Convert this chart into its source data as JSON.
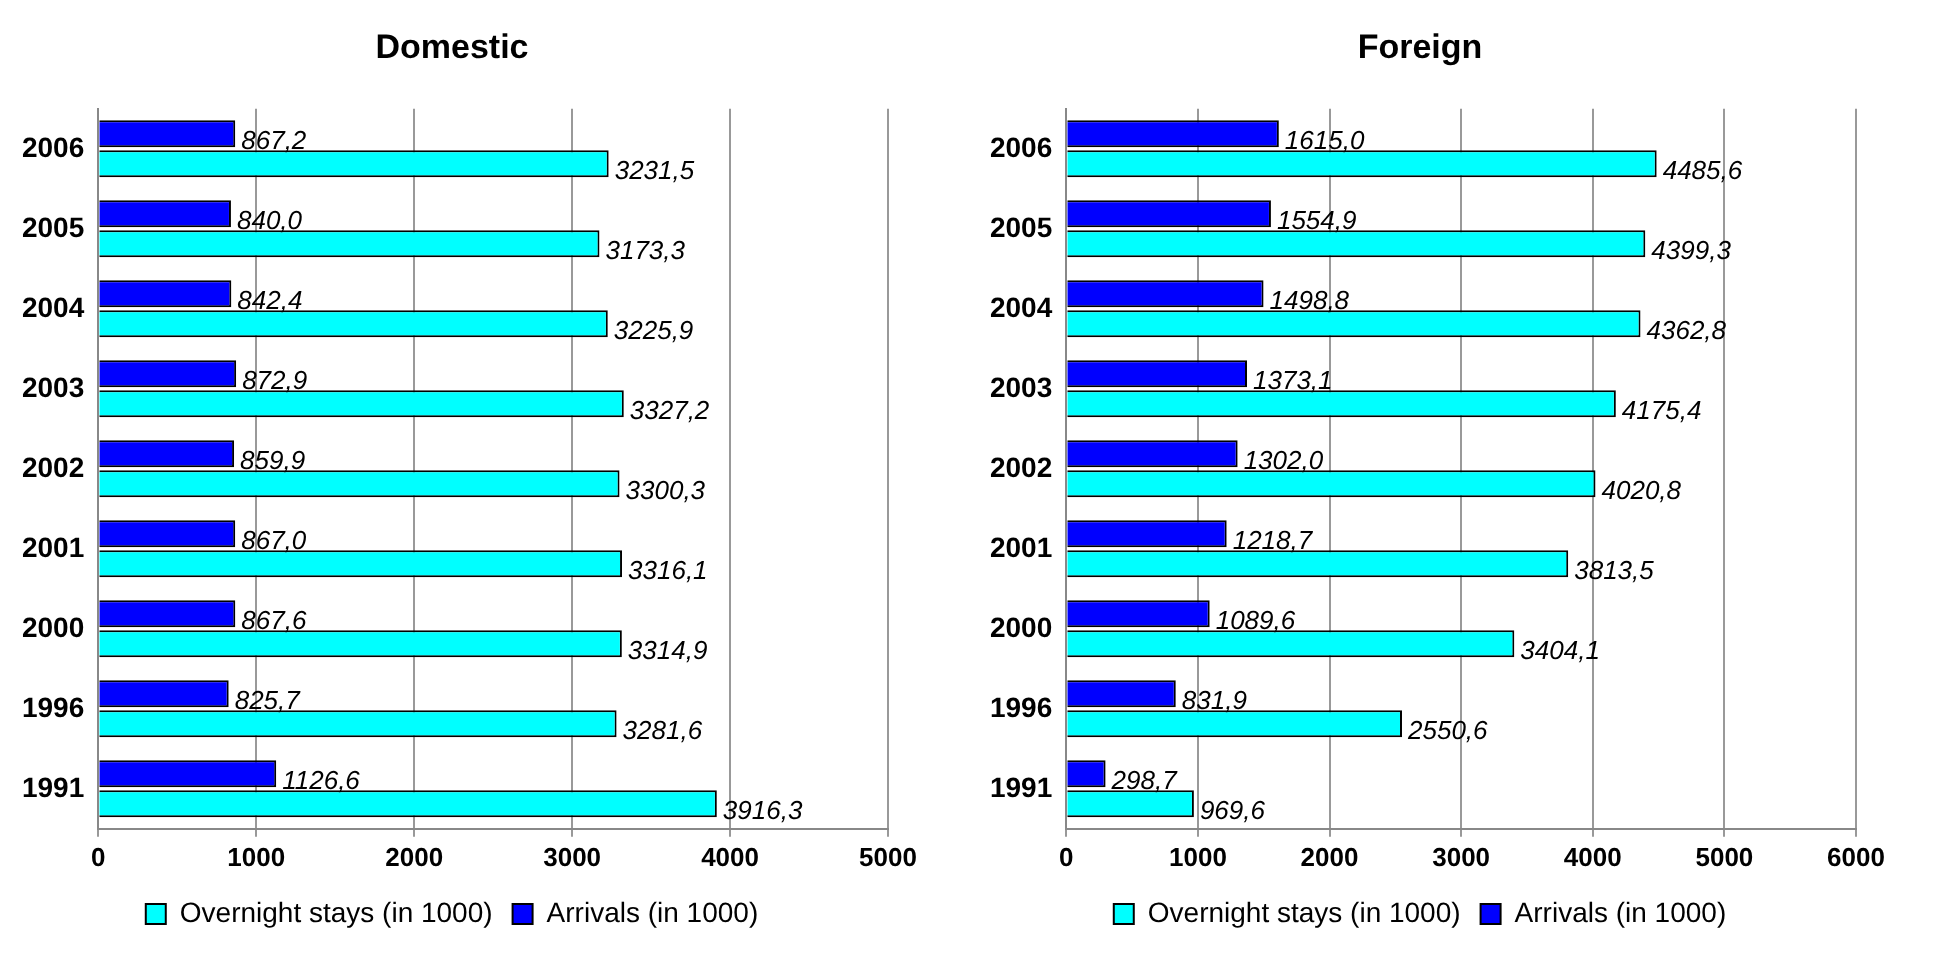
{
  "chart_data": [
    {
      "type": "bar",
      "orientation": "horizontal",
      "title": "Domestic",
      "categories": [
        "2006",
        "2005",
        "2004",
        "2003",
        "2002",
        "2001",
        "2000",
        "1996",
        "1991"
      ],
      "series": [
        {
          "name": "Overnight stays (in 1000)",
          "color": "#00ffff",
          "values": [
            3231.5,
            3173.3,
            3225.9,
            3327.2,
            3300.3,
            3316.1,
            3314.9,
            3281.6,
            3916.3
          ],
          "value_labels": [
            "3231,5",
            "3173,3",
            "3225,9",
            "3327,2",
            "3300,3",
            "3316,1",
            "3314,9",
            "3281,6",
            "3916,3"
          ]
        },
        {
          "name": "Arrivals (in 1000)",
          "color": "#0000ff",
          "values": [
            867.2,
            840.0,
            842.4,
            872.9,
            859.9,
            867.0,
            867.6,
            825.7,
            1126.6
          ],
          "value_labels": [
            "867,2",
            "840,0",
            "842,4",
            "872,9",
            "859,9",
            "867,0",
            "867,6",
            "825,7",
            "1126,6"
          ]
        }
      ],
      "xlim": [
        0,
        5000
      ],
      "xticks": [
        0,
        1000,
        2000,
        3000,
        4000,
        5000
      ],
      "grid": "x",
      "legend": "bottom"
    },
    {
      "type": "bar",
      "orientation": "horizontal",
      "title": "Foreign",
      "categories": [
        "2006",
        "2005",
        "2004",
        "2003",
        "2002",
        "2001",
        "2000",
        "1996",
        "1991"
      ],
      "series": [
        {
          "name": "Overnight stays (in 1000)",
          "color": "#00ffff",
          "values": [
            4485.6,
            4399.3,
            4362.8,
            4175.4,
            4020.8,
            3813.5,
            3404.1,
            2550.6,
            969.6
          ],
          "value_labels": [
            "4485,6",
            "4399,3",
            "4362,8",
            "4175,4",
            "4020,8",
            "3813,5",
            "3404,1",
            "2550,6",
            "969,6"
          ]
        },
        {
          "name": "Arrivals (in 1000)",
          "color": "#0000ff",
          "values": [
            1615.0,
            1554.9,
            1498.8,
            1373.1,
            1302.0,
            1218.7,
            1089.6,
            831.9,
            298.7
          ],
          "value_labels": [
            "1615,0",
            "1554,9",
            "1498,8",
            "1373,1",
            "1302,0",
            "1218,7",
            "1089,6",
            "831,9",
            "298,7"
          ]
        }
      ],
      "xlim": [
        0,
        6000
      ],
      "xticks": [
        0,
        1000,
        2000,
        3000,
        4000,
        5000,
        6000
      ],
      "grid": "x",
      "legend": "bottom"
    }
  ]
}
